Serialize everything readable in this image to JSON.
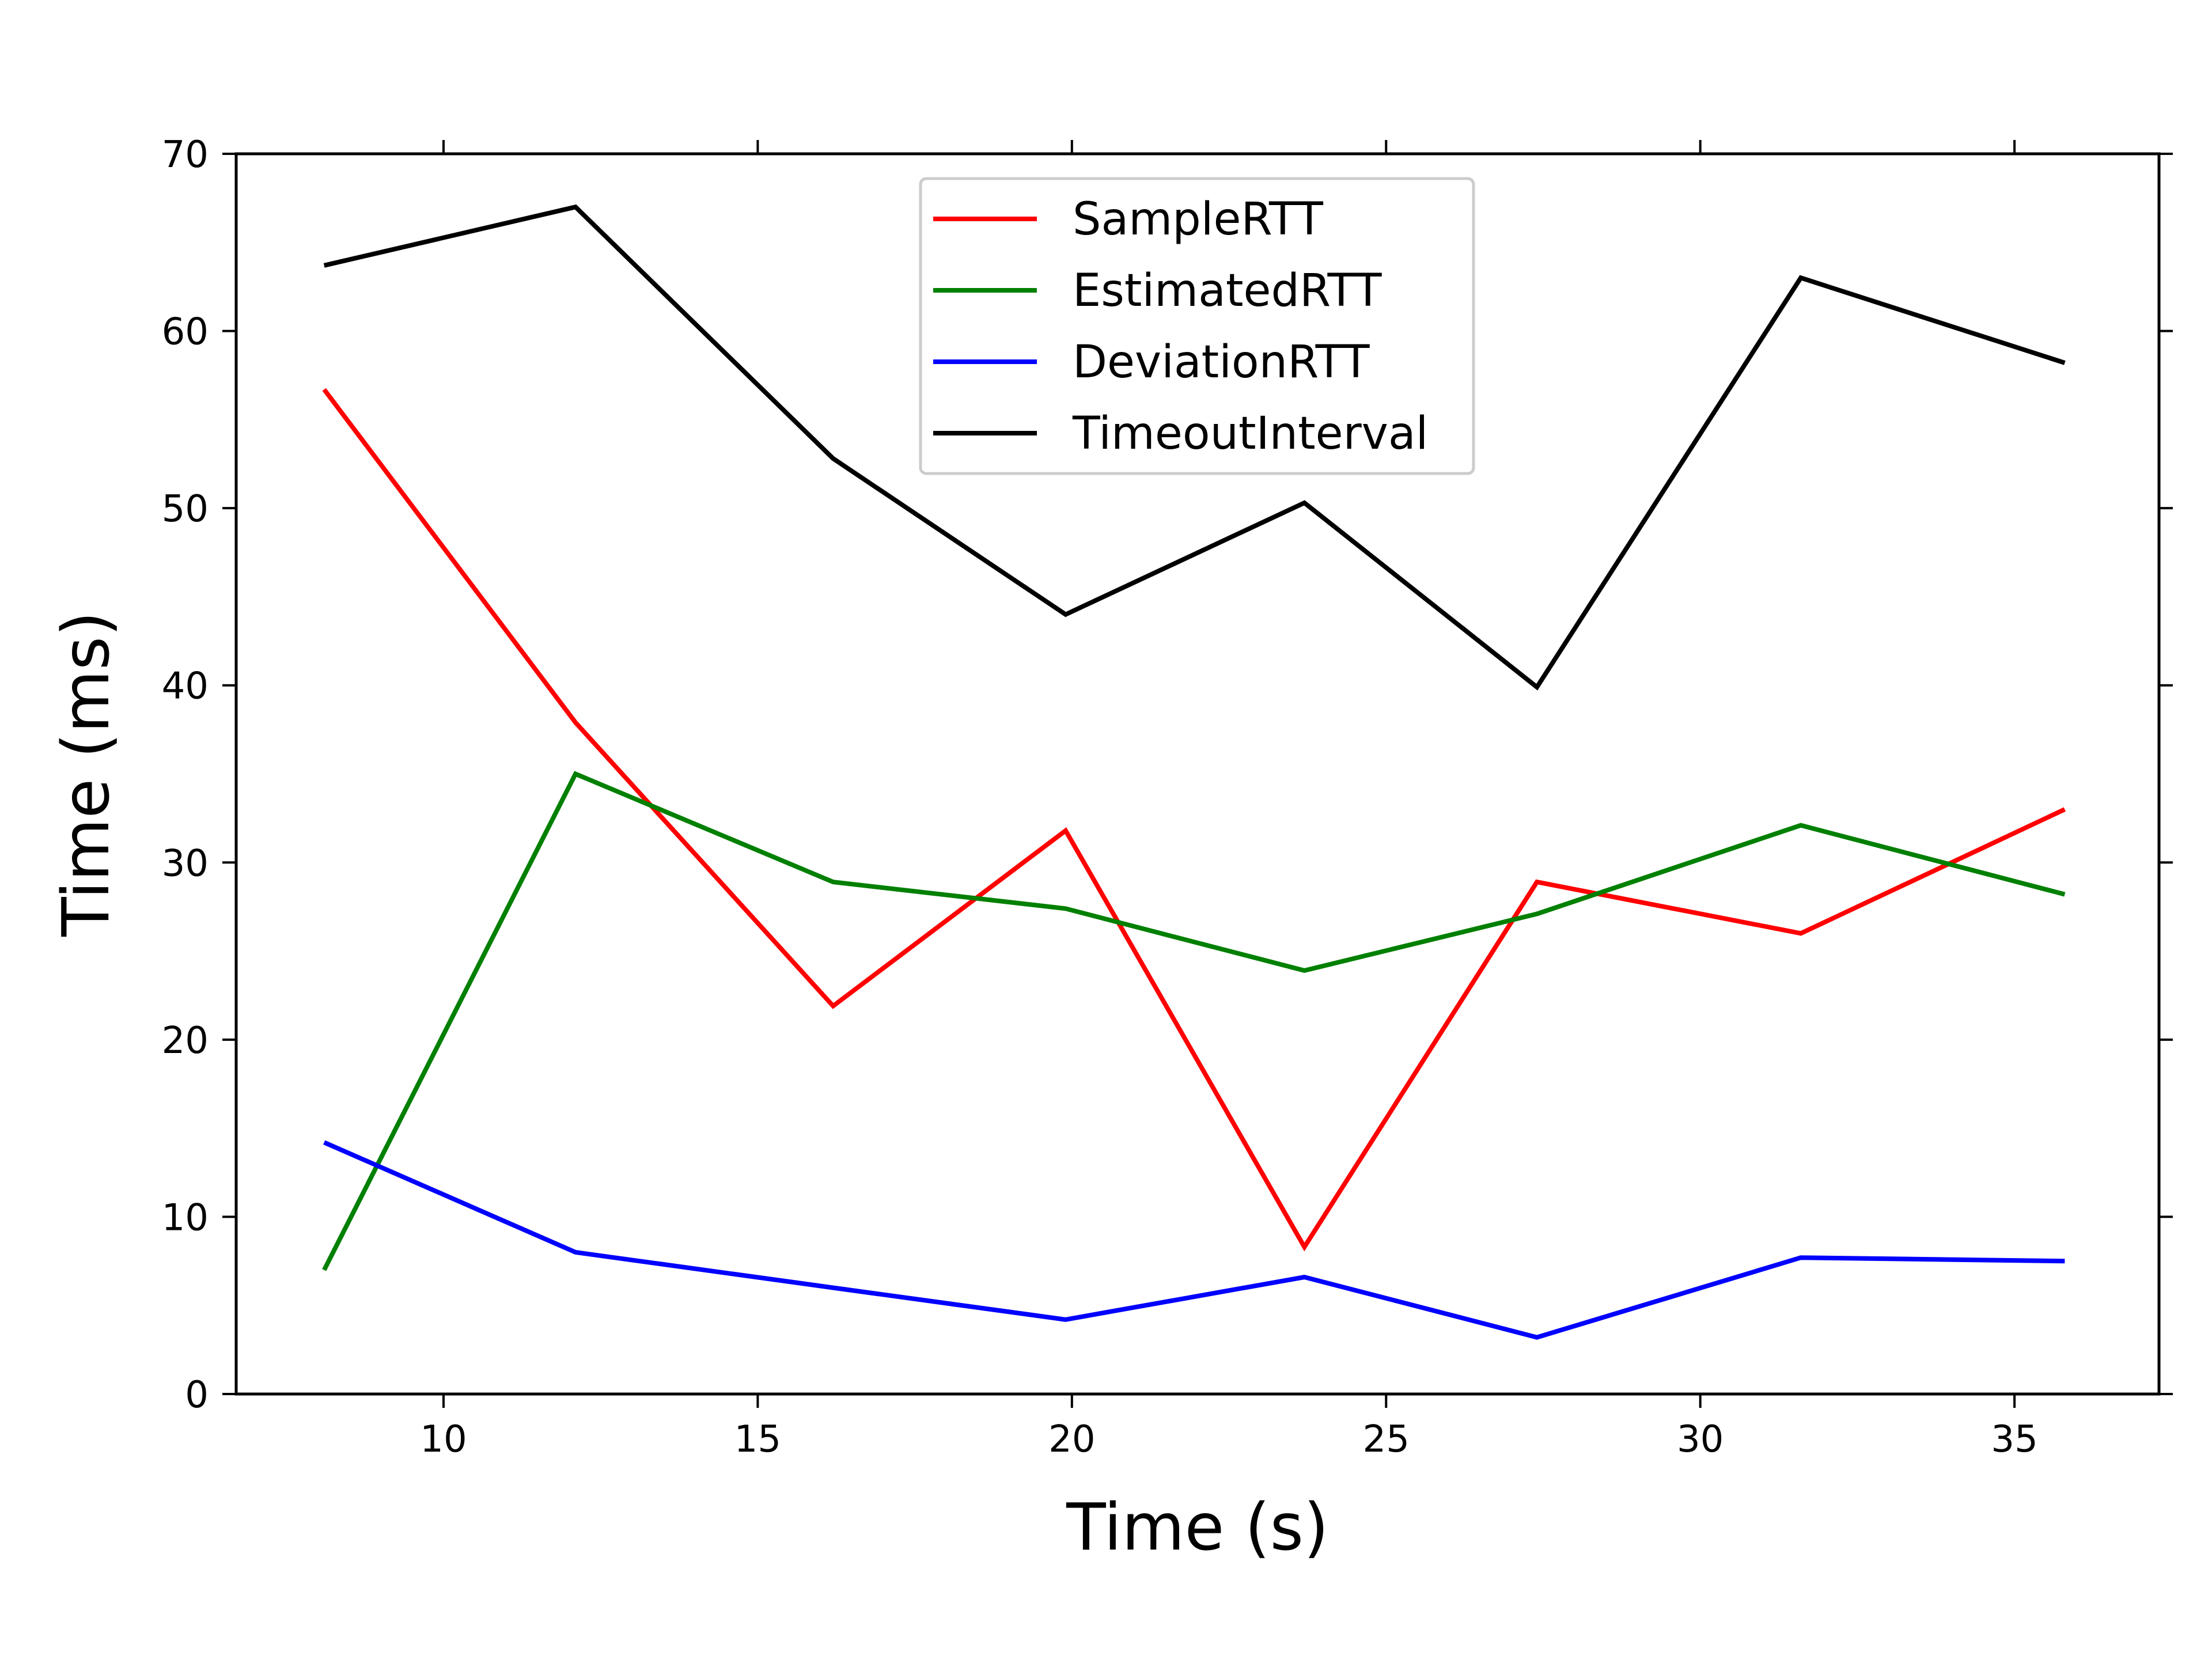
{
  "chart_data": {
    "type": "line",
    "xlabel": "Time (s)",
    "ylabel": "Time (ms)",
    "xlim": [
      6.7,
      37.3
    ],
    "ylim": [
      0,
      70
    ],
    "xticks": [
      10,
      15,
      20,
      25,
      30,
      35
    ],
    "yticks": [
      0,
      10,
      20,
      30,
      40,
      50,
      60,
      70
    ],
    "grid": false,
    "legend_position": "top-center",
    "x": [
      8.1,
      12.1,
      16.2,
      19.9,
      23.7,
      27.4,
      31.6,
      35.8
    ],
    "series": [
      {
        "name": "SampleRTT",
        "color": "#ff0000",
        "values": [
          56.7,
          37.9,
          21.9,
          31.8,
          8.3,
          28.9,
          26.0,
          33.0
        ]
      },
      {
        "name": "EstimatedRTT",
        "color": "#008000",
        "values": [
          7.0,
          35.0,
          28.9,
          27.4,
          23.9,
          27.1,
          32.1,
          28.2
        ]
      },
      {
        "name": "DeviationRTT",
        "color": "#0000ff",
        "values": [
          14.2,
          8.0,
          6.0,
          4.2,
          6.6,
          3.2,
          7.7,
          7.5
        ]
      },
      {
        "name": "TimeoutInterval",
        "color": "#000000",
        "values": [
          63.7,
          67.0,
          52.8,
          44.0,
          50.3,
          39.9,
          63.0,
          58.2
        ]
      }
    ]
  }
}
